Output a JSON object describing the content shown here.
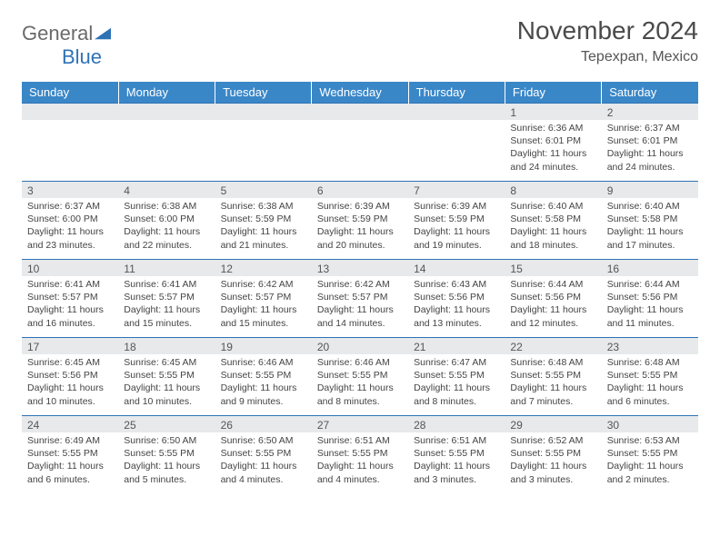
{
  "logo": {
    "text1": "General",
    "text2": "Blue"
  },
  "title": "November 2024",
  "location": "Tepexpan, Mexico",
  "colors": {
    "header_bg": "#3a87c8",
    "header_text": "#ffffff",
    "row_divider": "#2f73b5",
    "daynum_bg": "#e7e9eb",
    "body_text": "#444444",
    "logo_accent": "#2f73b5"
  },
  "weekdays": [
    "Sunday",
    "Monday",
    "Tuesday",
    "Wednesday",
    "Thursday",
    "Friday",
    "Saturday"
  ],
  "weeks": [
    [
      null,
      null,
      null,
      null,
      null,
      {
        "n": "1",
        "sr": "6:36 AM",
        "ss": "6:01 PM",
        "dl": "11 hours and 24 minutes."
      },
      {
        "n": "2",
        "sr": "6:37 AM",
        "ss": "6:01 PM",
        "dl": "11 hours and 24 minutes."
      }
    ],
    [
      {
        "n": "3",
        "sr": "6:37 AM",
        "ss": "6:00 PM",
        "dl": "11 hours and 23 minutes."
      },
      {
        "n": "4",
        "sr": "6:38 AM",
        "ss": "6:00 PM",
        "dl": "11 hours and 22 minutes."
      },
      {
        "n": "5",
        "sr": "6:38 AM",
        "ss": "5:59 PM",
        "dl": "11 hours and 21 minutes."
      },
      {
        "n": "6",
        "sr": "6:39 AM",
        "ss": "5:59 PM",
        "dl": "11 hours and 20 minutes."
      },
      {
        "n": "7",
        "sr": "6:39 AM",
        "ss": "5:59 PM",
        "dl": "11 hours and 19 minutes."
      },
      {
        "n": "8",
        "sr": "6:40 AM",
        "ss": "5:58 PM",
        "dl": "11 hours and 18 minutes."
      },
      {
        "n": "9",
        "sr": "6:40 AM",
        "ss": "5:58 PM",
        "dl": "11 hours and 17 minutes."
      }
    ],
    [
      {
        "n": "10",
        "sr": "6:41 AM",
        "ss": "5:57 PM",
        "dl": "11 hours and 16 minutes."
      },
      {
        "n": "11",
        "sr": "6:41 AM",
        "ss": "5:57 PM",
        "dl": "11 hours and 15 minutes."
      },
      {
        "n": "12",
        "sr": "6:42 AM",
        "ss": "5:57 PM",
        "dl": "11 hours and 15 minutes."
      },
      {
        "n": "13",
        "sr": "6:42 AM",
        "ss": "5:57 PM",
        "dl": "11 hours and 14 minutes."
      },
      {
        "n": "14",
        "sr": "6:43 AM",
        "ss": "5:56 PM",
        "dl": "11 hours and 13 minutes."
      },
      {
        "n": "15",
        "sr": "6:44 AM",
        "ss": "5:56 PM",
        "dl": "11 hours and 12 minutes."
      },
      {
        "n": "16",
        "sr": "6:44 AM",
        "ss": "5:56 PM",
        "dl": "11 hours and 11 minutes."
      }
    ],
    [
      {
        "n": "17",
        "sr": "6:45 AM",
        "ss": "5:56 PM",
        "dl": "11 hours and 10 minutes."
      },
      {
        "n": "18",
        "sr": "6:45 AM",
        "ss": "5:55 PM",
        "dl": "11 hours and 10 minutes."
      },
      {
        "n": "19",
        "sr": "6:46 AM",
        "ss": "5:55 PM",
        "dl": "11 hours and 9 minutes."
      },
      {
        "n": "20",
        "sr": "6:46 AM",
        "ss": "5:55 PM",
        "dl": "11 hours and 8 minutes."
      },
      {
        "n": "21",
        "sr": "6:47 AM",
        "ss": "5:55 PM",
        "dl": "11 hours and 8 minutes."
      },
      {
        "n": "22",
        "sr": "6:48 AM",
        "ss": "5:55 PM",
        "dl": "11 hours and 7 minutes."
      },
      {
        "n": "23",
        "sr": "6:48 AM",
        "ss": "5:55 PM",
        "dl": "11 hours and 6 minutes."
      }
    ],
    [
      {
        "n": "24",
        "sr": "6:49 AM",
        "ss": "5:55 PM",
        "dl": "11 hours and 6 minutes."
      },
      {
        "n": "25",
        "sr": "6:50 AM",
        "ss": "5:55 PM",
        "dl": "11 hours and 5 minutes."
      },
      {
        "n": "26",
        "sr": "6:50 AM",
        "ss": "5:55 PM",
        "dl": "11 hours and 4 minutes."
      },
      {
        "n": "27",
        "sr": "6:51 AM",
        "ss": "5:55 PM",
        "dl": "11 hours and 4 minutes."
      },
      {
        "n": "28",
        "sr": "6:51 AM",
        "ss": "5:55 PM",
        "dl": "11 hours and 3 minutes."
      },
      {
        "n": "29",
        "sr": "6:52 AM",
        "ss": "5:55 PM",
        "dl": "11 hours and 3 minutes."
      },
      {
        "n": "30",
        "sr": "6:53 AM",
        "ss": "5:55 PM",
        "dl": "11 hours and 2 minutes."
      }
    ]
  ],
  "labels": {
    "sunrise": "Sunrise:",
    "sunset": "Sunset:",
    "daylight": "Daylight:"
  }
}
